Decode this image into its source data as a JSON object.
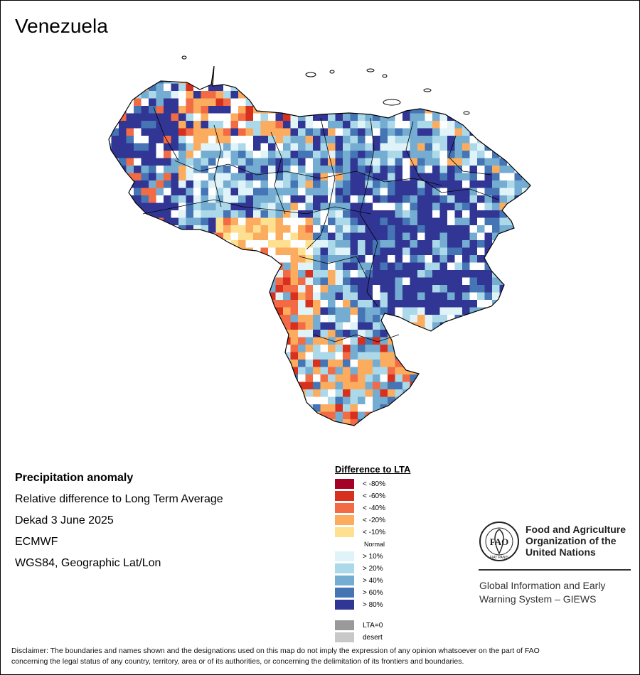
{
  "map": {
    "title": "Venezuela"
  },
  "info": {
    "title": "Precipitation anomaly",
    "subtitle": "Relative difference to Long Term Average",
    "period": "Dekad 3 June 2025",
    "source": "ECMWF",
    "projection": "WGS84, Geographic Lat/Lon"
  },
  "legend": {
    "title": "Difference to LTA",
    "items": [
      {
        "label": "< -80%",
        "color": "#a50026"
      },
      {
        "label": "< -60%",
        "color": "#d7301f"
      },
      {
        "label": "< -40%",
        "color": "#f26b44"
      },
      {
        "label": "< -20%",
        "color": "#fbac5f"
      },
      {
        "label": "< -10%",
        "color": "#fee090"
      },
      {
        "label": "Normal",
        "color": "#ffffff"
      },
      {
        "label": "> 10%",
        "color": "#e0f3f8"
      },
      {
        "label": "> 20%",
        "color": "#abd9e9"
      },
      {
        "label": "> 40%",
        "color": "#74add1"
      },
      {
        "label": "> 60%",
        "color": "#4575b4"
      },
      {
        "label": "> 80%",
        "color": "#313695"
      }
    ],
    "extra": [
      {
        "label": "LTA=0",
        "color": "#9a9a9a"
      },
      {
        "label": "desert",
        "color": "#c8c8c8"
      }
    ]
  },
  "organization": {
    "name_line1": "Food and Agriculture",
    "name_line2": "Organization of the",
    "name_line3": "United Nations",
    "logo_text": "FAO",
    "logo_motto": "FIAT PANIS",
    "system_line1": "Global Information and Early",
    "system_line2": "Warning System – GIEWS"
  },
  "disclaimer": {
    "line1": "Disclaimer: The boundaries and names shown and the designations used on this map do not imply the expression of any opinion whatsoever on the part of FAO",
    "line2": "concerning the legal status of any country, territory, area or of its authorities, or concerning the delimitation of its frontiers and boundaries."
  }
}
